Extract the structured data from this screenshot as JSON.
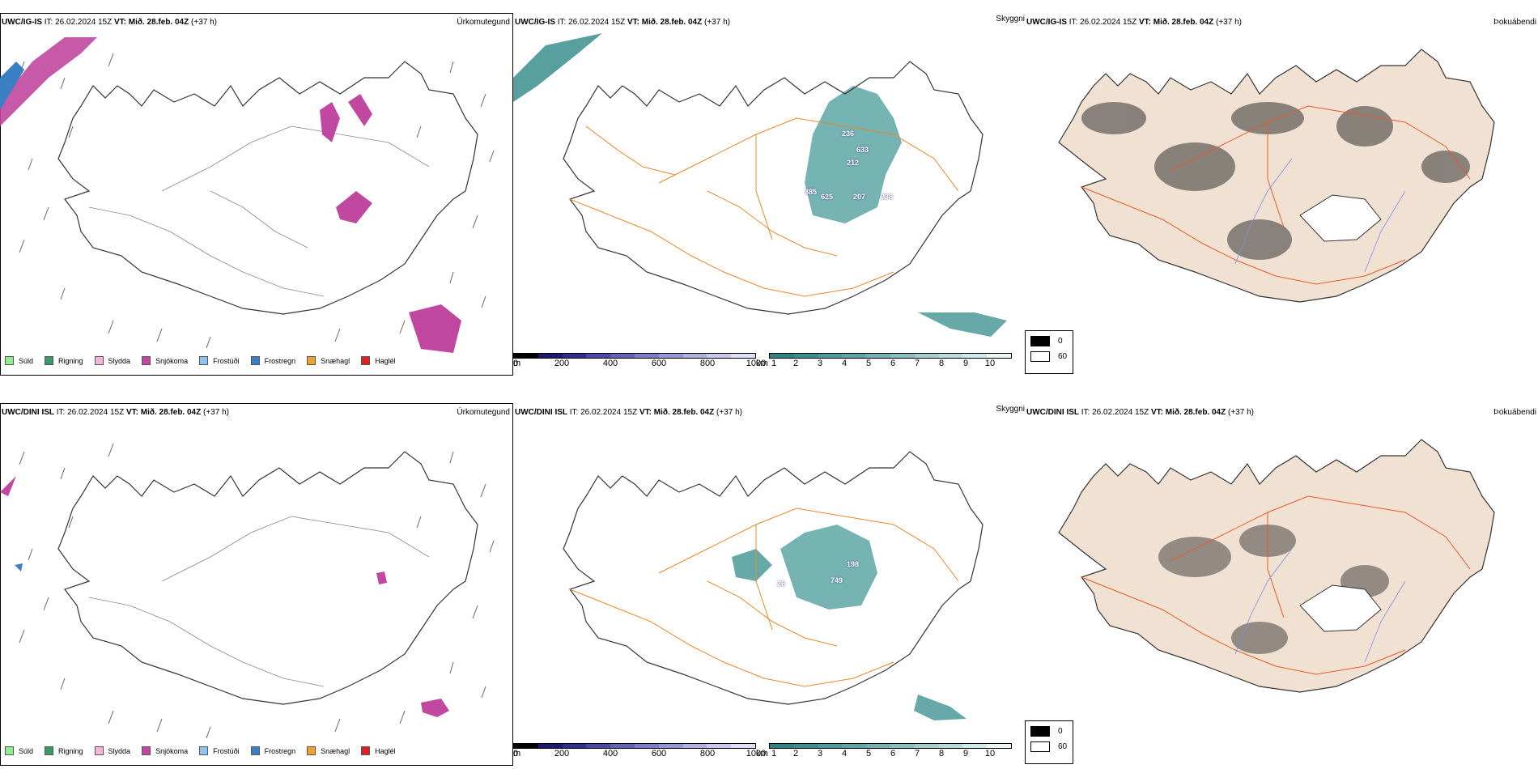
{
  "panels": {
    "r1c1": {
      "model": "UWC/IG-IS",
      "it": "IT: 26.02.2024 15Z",
      "vt_label": "VT:",
      "vt": "Mið. 28.feb. 04Z",
      "lead": "(+37 h)",
      "ptype": "Úrkomutegund"
    },
    "r1c2": {
      "model": "UWC/IG-IS",
      "it": "IT: 26.02.2024 15Z",
      "vt_label": "VT:",
      "vt": "Mið. 28.feb. 04Z",
      "lead": "(+37 h)",
      "ptype": "Skyggni"
    },
    "r1c3": {
      "model": "UWC/IG-IS",
      "it": "IT: 26.02.2024 15Z",
      "vt_label": "VT:",
      "vt": "Mið. 28.feb. 04Z",
      "lead": "(+37 h)",
      "ptype": "Þokuábendi"
    },
    "r2c1": {
      "model": "UWC/DINI ISL",
      "it": "IT: 26.02.2024 15Z",
      "vt_label": "VT:",
      "vt": "Mið. 28.feb. 04Z",
      "lead": "(+37 h)",
      "ptype": "Úrkomutegund"
    },
    "r2c2": {
      "model": "UWC/DINI ISL",
      "it": "IT: 26.02.2024 15Z",
      "vt_label": "VT:",
      "vt": "Mið. 28.feb. 04Z",
      "lead": "(+37 h)",
      "ptype": "Skyggni"
    },
    "r2c3": {
      "model": "UWC/DINI ISL",
      "it": "IT: 26.02.2024 15Z",
      "vt_label": "VT:",
      "vt": "Mið. 28.feb. 04Z",
      "lead": "(+37 h)",
      "ptype": "Þokuábendi"
    }
  },
  "precip_legend": [
    {
      "label": "Súld",
      "color": "#90ee90"
    },
    {
      "label": "Rigning",
      "color": "#3a9a6a"
    },
    {
      "label": "Slydda",
      "color": "#f4b6d8"
    },
    {
      "label": "Snjókoma",
      "color": "#c048a0"
    },
    {
      "label": "Frostúði",
      "color": "#90c4f0"
    },
    {
      "label": "Frostregn",
      "color": "#3a7ec4"
    },
    {
      "label": "Snæhagl",
      "color": "#f0a030"
    },
    {
      "label": "Haglél",
      "color": "#e02020"
    }
  ],
  "vis_m_bar": {
    "unit": "m",
    "ticks": [
      "0",
      "200",
      "400",
      "600",
      "800",
      "1000"
    ],
    "colors": [
      "#000000",
      "#1a1a70",
      "#2e2e90",
      "#4848a8",
      "#6262b8",
      "#7c7cc8",
      "#9696d4",
      "#b0b0e0",
      "#c8c8ec",
      "#e0e0f6"
    ]
  },
  "vis_km_bar": {
    "unit": "km",
    "ticks": [
      "1",
      "2",
      "3",
      "4",
      "5",
      "6",
      "7",
      "8",
      "9",
      "10"
    ],
    "colors": [
      "#2e8484",
      "#3c8e8e",
      "#4c9a9a",
      "#5ea6a6",
      "#72b2b2",
      "#88c0c0",
      "#a0cece",
      "#b8dcdc",
      "#d2eaea",
      "#ecf6f6"
    ]
  },
  "fog_legend": [
    {
      "value": "0",
      "color": "#000000"
    },
    {
      "value": "60",
      "color": "#ffffff"
    }
  ],
  "vis_labels_r1": [
    "236",
    "633",
    "212",
    "385",
    "625",
    "207",
    "238"
  ],
  "vis_labels_r2": [
    "198",
    "749",
    "26"
  ]
}
